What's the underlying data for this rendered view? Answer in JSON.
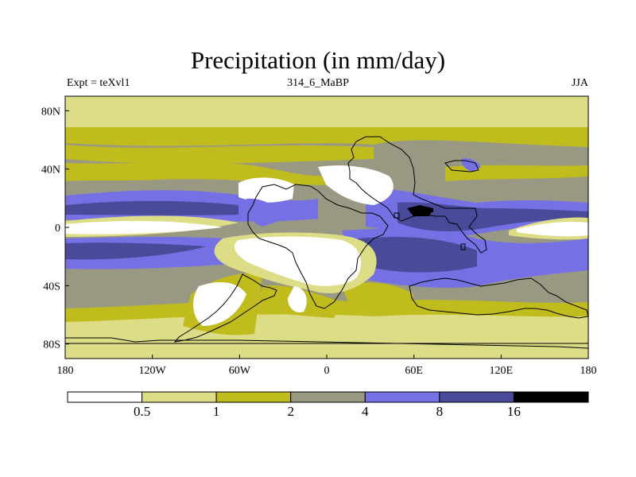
{
  "title": "Precipitation (in mm/day)",
  "subtitle_left": "Expt = teXvl1",
  "subtitle_center": "314_6_MaBP",
  "subtitle_right": "JJA",
  "map": {
    "projection": "cylindrical equidistant",
    "lon_ticks": [
      -180,
      -120,
      -60,
      0,
      60,
      120,
      180
    ],
    "lon_labels": [
      "180",
      "120W",
      "60W",
      "0",
      "60E",
      "120E",
      "180"
    ],
    "lat_ticks": [
      80,
      40,
      0,
      -40,
      -80
    ],
    "lat_labels": [
      "80N",
      "40N",
      "0",
      "40S",
      "80S"
    ]
  },
  "colorbar": {
    "levels": [
      "0.5",
      "1",
      "2",
      "4",
      "8",
      "16"
    ],
    "colors": [
      "#ffffff",
      "#dedd87",
      "#c0bc1e",
      "#999983",
      "#7570e4",
      "#4a4a9a",
      "#000000"
    ]
  }
}
